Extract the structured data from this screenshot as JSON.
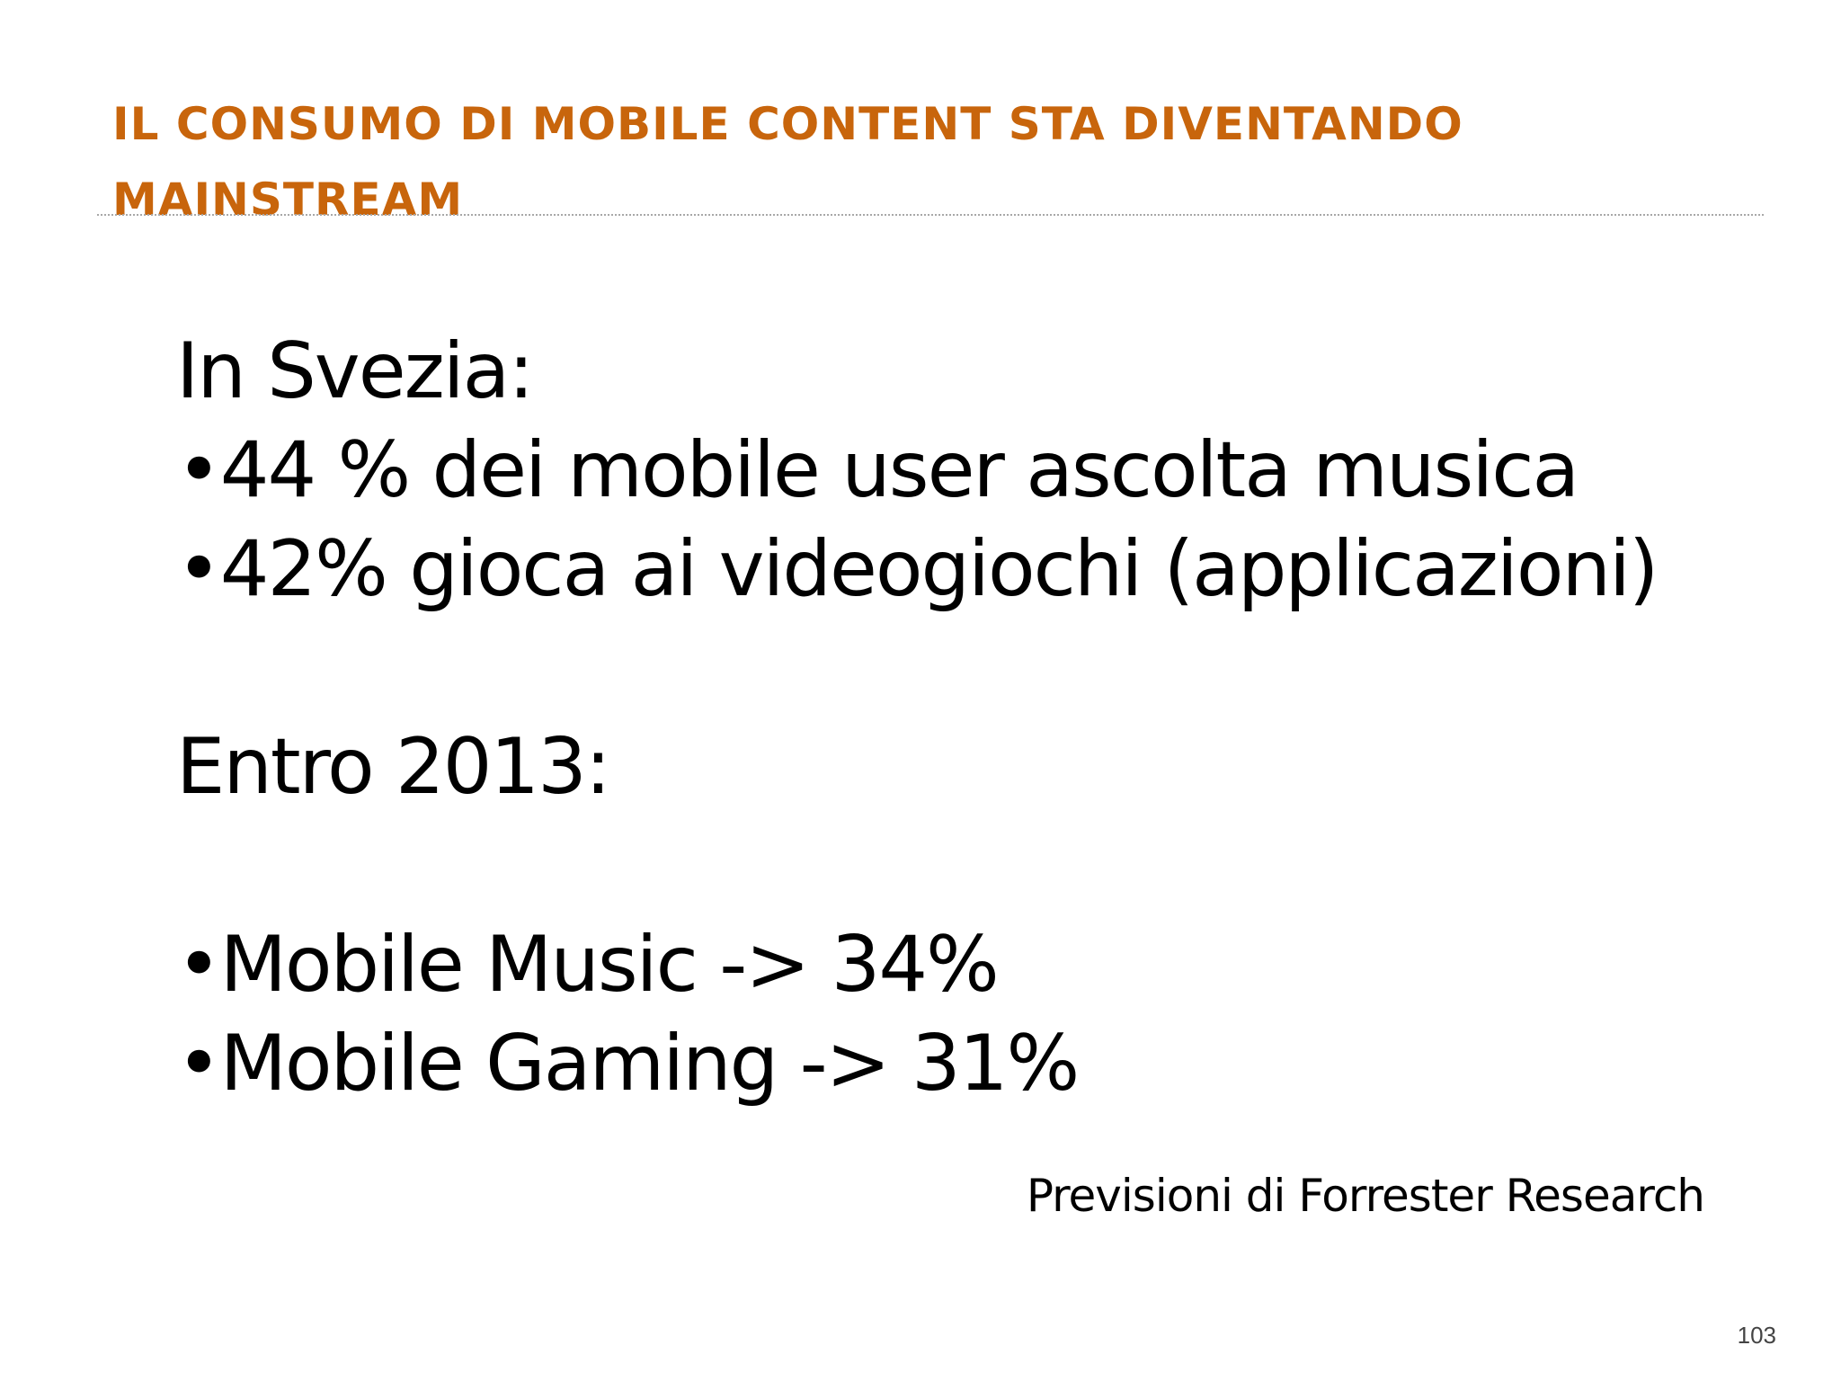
{
  "slide": {
    "title_lines": [
      "IL CONSUMO DI MOBILE CONTENT STA DIVENTANDO",
      "MAINSTREAM"
    ],
    "sweden": {
      "heading": "In Svezia:",
      "bullets": [
        "•44 % dei mobile user ascolta musica",
        "•42% gioca ai videogiochi (applicazioni)"
      ]
    },
    "forecast": {
      "heading": "Entro 2013:",
      "bullets": [
        "•Mobile Music -> 34%",
        "•Mobile Gaming -> 31%"
      ]
    },
    "source": "Previsioni di Forrester Research",
    "page_number": "103",
    "colors": {
      "title": "#c8650c",
      "text": "#000000"
    }
  }
}
